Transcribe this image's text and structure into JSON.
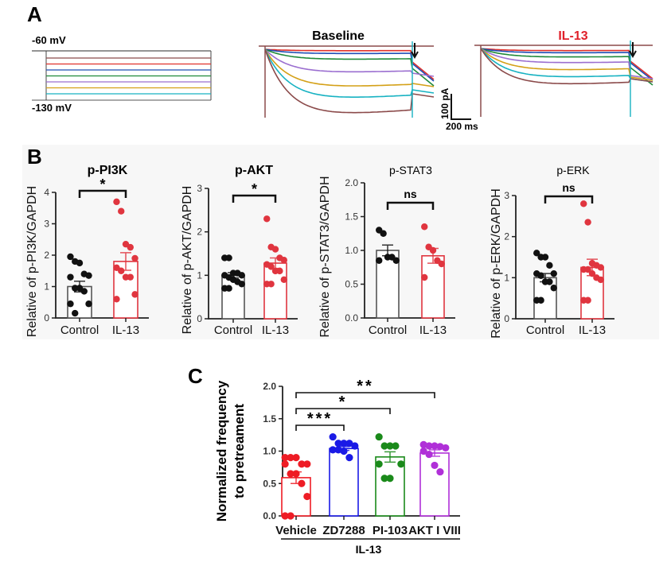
{
  "panels": {
    "a": "A",
    "b": "B",
    "c": "C"
  },
  "panel_a": {
    "protocol": {
      "top_label": "-60 mV",
      "bottom_label": "-130 mV"
    },
    "baseline_title": "Baseline",
    "il13_title": "IL-13",
    "il13_title_color": "#e0202a",
    "scale_bar": {
      "current": "100 pA",
      "time": "200 ms"
    },
    "trace_colors": [
      "#e0302a",
      "#1f4fb5",
      "#1f8a3a",
      "#9b6fd0",
      "#d4a017",
      "#17b2c2",
      "#8b4a4a"
    ],
    "arrow_icon": "down-arrow-icon"
  },
  "chart_data": [
    {
      "type": "bar",
      "title": "p-PI3K",
      "title_bold": true,
      "ylabel": "Relative of p-PI3K/GAPDH",
      "ylim": [
        0,
        4
      ],
      "yticks": [
        "0",
        "1",
        "2",
        "3",
        "4"
      ],
      "categories": [
        "Control",
        "IL-13"
      ],
      "colors": [
        "#111111",
        "#e0353f"
      ],
      "means": [
        1.0,
        1.8
      ],
      "sem": [
        0.17,
        0.28
      ],
      "points": [
        [
          1.95,
          1.8,
          1.75,
          1.4,
          1.35,
          1.3,
          0.95,
          0.95,
          0.85,
          0.45,
          0.45,
          0.15
        ],
        [
          3.7,
          3.4,
          2.35,
          2.25,
          1.9,
          1.6,
          1.5,
          1.3,
          1.3,
          0.75,
          0.6
        ]
      ],
      "significance": [
        {
          "pair": [
            "Control",
            "IL-13"
          ],
          "label": "*"
        }
      ]
    },
    {
      "type": "bar",
      "title": "p-AKT",
      "title_bold": true,
      "ylabel": "Relative of p-AKT/GAPDH",
      "ylim": [
        0,
        3
      ],
      "yticks": [
        "0",
        "1",
        "2",
        "3"
      ],
      "categories": [
        "Control",
        "IL-13"
      ],
      "colors": [
        "#111111",
        "#e0353f"
      ],
      "means": [
        1.0,
        1.28
      ],
      "sem": [
        0.06,
        0.12
      ],
      "points": [
        [
          1.4,
          1.4,
          1.05,
          1.05,
          1.0,
          1.0,
          0.95,
          0.9,
          0.85,
          0.8,
          0.7,
          0.7
        ],
        [
          2.3,
          1.65,
          1.6,
          1.4,
          1.35,
          1.25,
          1.2,
          1.1,
          1.1,
          0.9,
          0.8,
          0.8
        ]
      ],
      "significance": [
        {
          "pair": [
            "Control",
            "IL-13"
          ],
          "label": "*"
        }
      ]
    },
    {
      "type": "bar",
      "title": "p-STAT3",
      "title_bold": false,
      "ylabel": "Relative of p-STAT3/GAPDH",
      "ylim": [
        0,
        2
      ],
      "yticks": [
        "0.0",
        "0.5",
        "1.0",
        "1.5",
        "2.0"
      ],
      "categories": [
        "Control",
        "IL-13"
      ],
      "colors": [
        "#111111",
        "#e0353f"
      ],
      "means": [
        1.0,
        0.92
      ],
      "sem": [
        0.08,
        0.11
      ],
      "points": [
        [
          1.3,
          1.25,
          0.9,
          0.9,
          0.85,
          0.85
        ],
        [
          1.35,
          1.05,
          1.0,
          0.85,
          0.8,
          0.6
        ]
      ],
      "significance": [
        {
          "pair": [
            "Control",
            "IL-13"
          ],
          "label": "ns"
        }
      ]
    },
    {
      "type": "bar",
      "title": "p-ERK",
      "title_bold": false,
      "ylabel": "Relative of p-ERK/GAPDH",
      "ylim": [
        0,
        3
      ],
      "yticks": [
        "0",
        "1",
        "2",
        "3"
      ],
      "categories": [
        "Control",
        "IL-13"
      ],
      "colors": [
        "#111111",
        "#e0353f"
      ],
      "means": [
        1.0,
        1.25
      ],
      "sem": [
        0.1,
        0.2
      ],
      "points": [
        [
          1.6,
          1.5,
          1.5,
          1.3,
          1.1,
          1.1,
          1.05,
          0.9,
          0.9,
          0.75,
          0.45,
          0.45
        ],
        [
          2.8,
          2.35,
          1.35,
          1.3,
          1.25,
          1.2,
          1.2,
          1.1,
          1.0,
          0.95,
          0.45,
          0.45
        ]
      ],
      "significance": [
        {
          "pair": [
            "Control",
            "IL-13"
          ],
          "label": "ns"
        }
      ]
    },
    {
      "type": "bar",
      "title": "",
      "ylabel": "Normalized frequency to pretreament",
      "ylabel_lines": [
        "Normalized frequency",
        "to pretreament"
      ],
      "ylim": [
        0,
        2
      ],
      "yticks": [
        "0.0",
        "0.5",
        "1.0",
        "1.5",
        "2.0"
      ],
      "categories": [
        "Vehicle",
        "ZD7288",
        "PI-103",
        "AKT I VIII"
      ],
      "group_label": "IL-13",
      "colors": [
        "#ee1c25",
        "#1a1ae6",
        "#1a8a1a",
        "#b030d8"
      ],
      "means": [
        0.59,
        1.04,
        0.91,
        0.97
      ],
      "sem": [
        0.09,
        0.03,
        0.08,
        0.05
      ],
      "points": [
        [
          0.9,
          0.9,
          0.9,
          0.8,
          0.8,
          0.8,
          0.65,
          0.65,
          0.5,
          0.3,
          0.0,
          0.0
        ],
        [
          1.22,
          1.12,
          1.12,
          1.12,
          1.08,
          1.02,
          1.02,
          1.0,
          0.9
        ],
        [
          1.22,
          1.08,
          1.08,
          1.08,
          0.8,
          0.8,
          0.58,
          0.58
        ],
        [
          1.1,
          1.08,
          1.08,
          1.07,
          1.05,
          1.0,
          0.95,
          0.78,
          0.68
        ]
      ],
      "significance": [
        {
          "pair": [
            "Vehicle",
            "ZD7288"
          ],
          "label": "***"
        },
        {
          "pair": [
            "Vehicle",
            "PI-103"
          ],
          "label": "*"
        },
        {
          "pair": [
            "Vehicle",
            "AKT I VIII"
          ],
          "label": "**"
        }
      ]
    }
  ]
}
